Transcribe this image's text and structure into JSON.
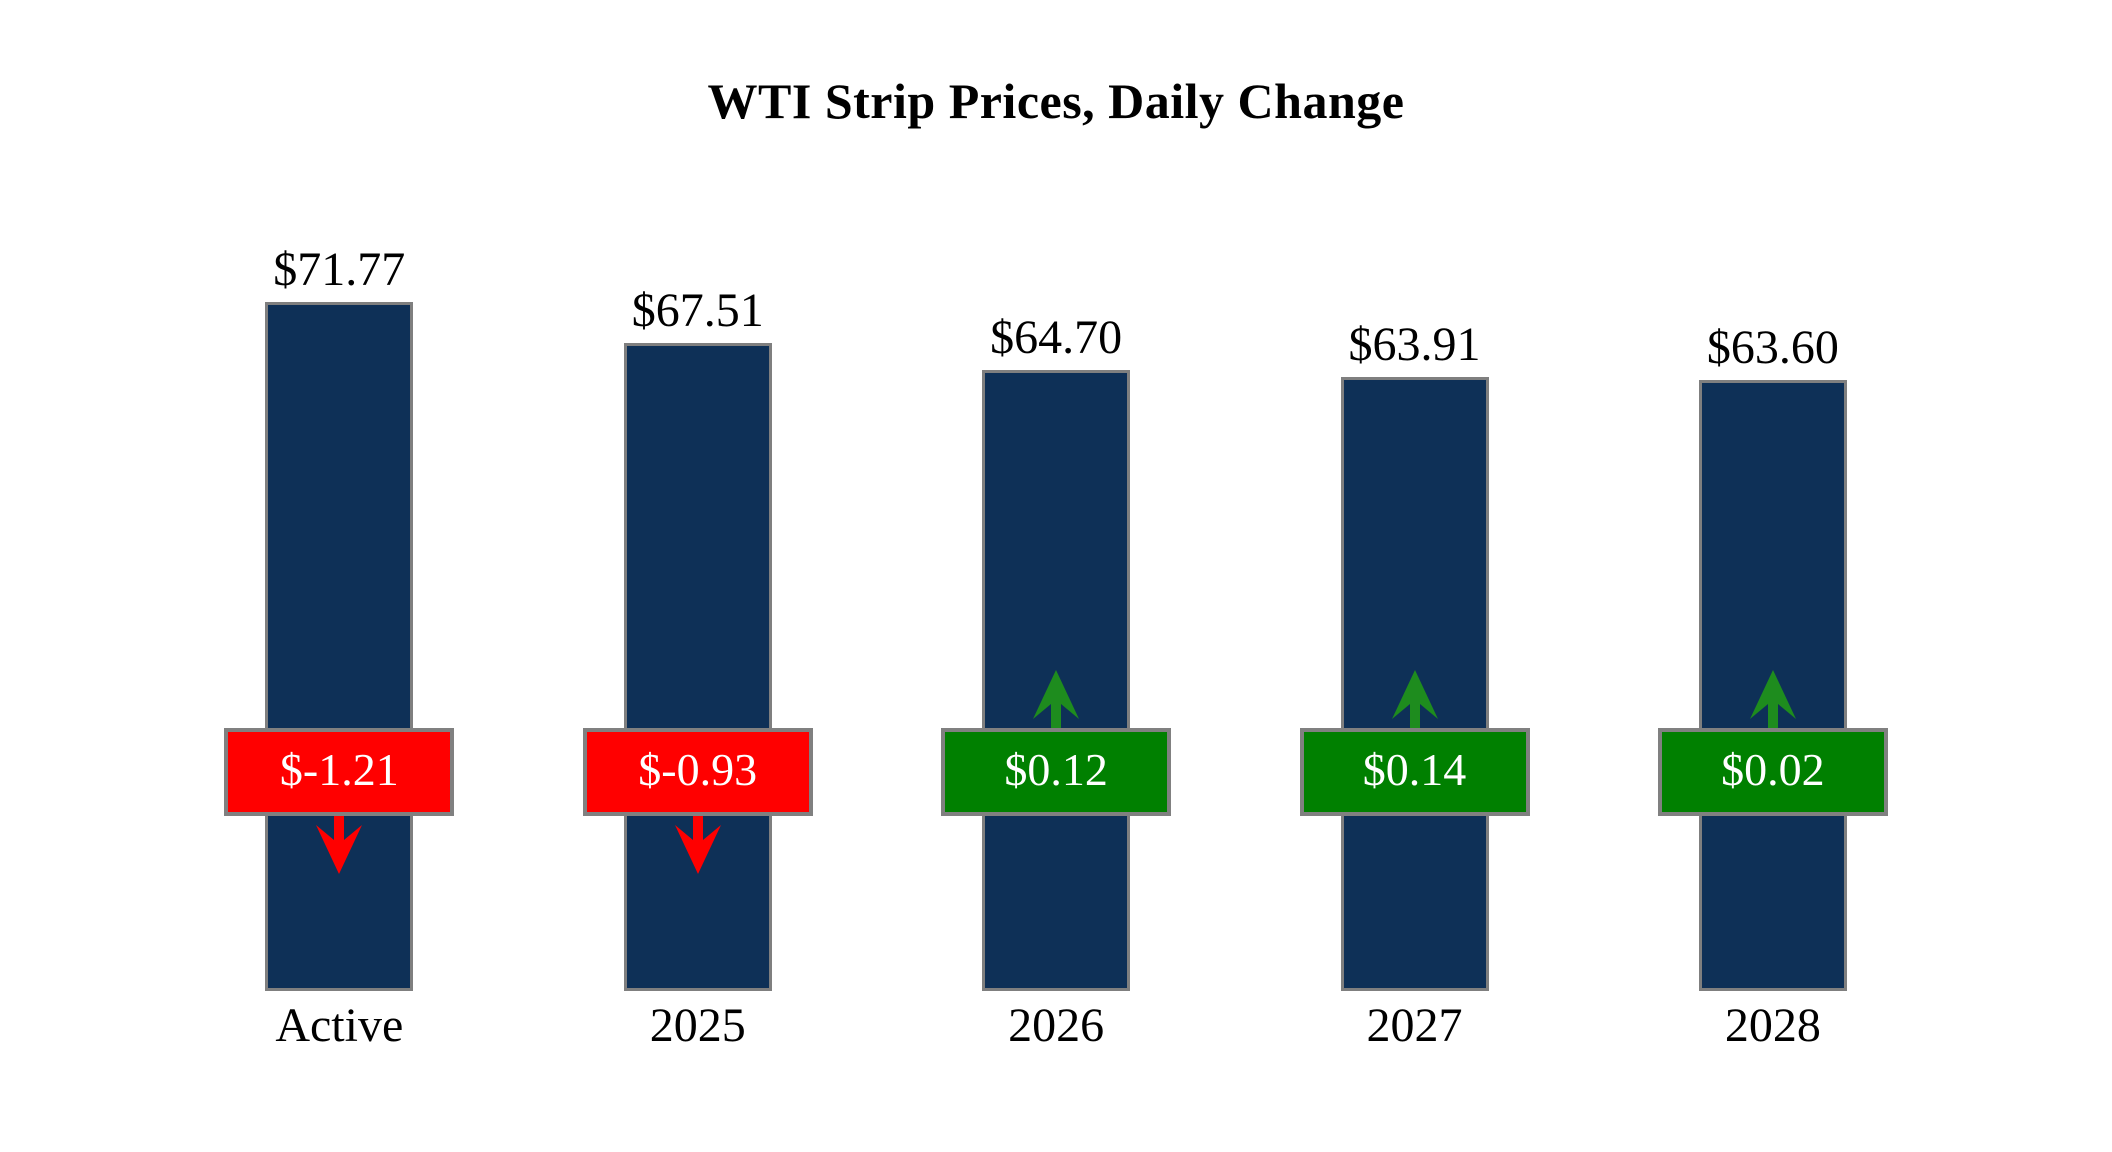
{
  "chart_data": {
    "type": "bar",
    "title": "WTI Strip Prices, Daily Change",
    "categories": [
      "Active",
      "2025",
      "2026",
      "2027",
      "2028"
    ],
    "values": [
      71.77,
      67.51,
      64.7,
      63.91,
      63.6
    ],
    "price_labels": [
      "$71.77",
      "$67.51",
      "$64.70",
      "$63.91",
      "$63.60"
    ],
    "daily_changes": [
      -1.21,
      -0.93,
      0.12,
      0.14,
      0.02
    ],
    "change_labels": [
      "$-1.21",
      "$-0.93",
      "$0.12",
      "$0.14",
      "$0.02"
    ],
    "change_directions": [
      "down",
      "down",
      "up",
      "up",
      "up"
    ],
    "xlabel": "",
    "ylabel": "",
    "ylim": [
      0,
      75
    ],
    "grid": false,
    "legend": false,
    "bar_color": "#0E3057",
    "bar_border_color": "#7F7F7F",
    "decrease_color": "#FF0000",
    "increase_color": "#008000",
    "increase_arrow_color": "#1E8C1E",
    "badge_border_color": "#808080",
    "badge_text_color": "#FFFFFF",
    "text_color": "#000000",
    "background_color": "#FFFFFF"
  }
}
